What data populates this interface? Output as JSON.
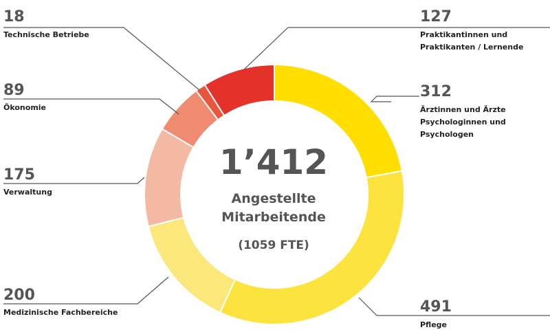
{
  "chart_data": {
    "type": "pie",
    "center": {
      "total": "1’412",
      "label_line1": "Angestellte",
      "label_line2": "Mitarbeitende",
      "fte": "(1059 FTE)"
    },
    "slices": [
      {
        "value": 312,
        "value_label": "312",
        "label_lines": [
          "Ärztinnen und Ärzte",
          "Psychologinnen und",
          "Psychologen"
        ],
        "color": "#ffde00"
      },
      {
        "value": 491,
        "value_label": "491",
        "label_lines": [
          "Pflege"
        ],
        "color": "#fde33d"
      },
      {
        "value": 200,
        "value_label": "200",
        "label_lines": [
          "Medizinische Fachbereiche"
        ],
        "color": "#fbe77a"
      },
      {
        "value": 175,
        "value_label": "175",
        "label_lines": [
          "Verwaltung"
        ],
        "color": "#f4b9a3"
      },
      {
        "value": 89,
        "value_label": "89",
        "label_lines": [
          "Ökonomie"
        ],
        "color": "#ee8b71"
      },
      {
        "value": 18,
        "value_label": "18",
        "label_lines": [
          "Technische Betriebe"
        ],
        "color": "#e8563d"
      },
      {
        "value": 127,
        "value_label": "127",
        "label_lines": [
          "Praktikantinnen und",
          "Praktikanten / Lernende"
        ],
        "color": "#e4322b"
      }
    ]
  }
}
